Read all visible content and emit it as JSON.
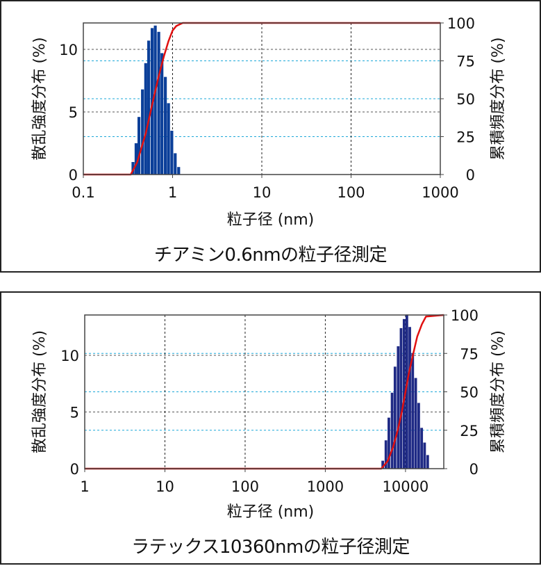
{
  "charts": [
    {
      "caption": "チアミン0.6nmの粒子径測定",
      "xlabel": "粒子径 (nm)",
      "ylabel_left": "散乱強度分布 (%)",
      "ylabel_right": "累積頻度分布 (%)",
      "x_ticks": [
        "0.1",
        "1",
        "10",
        "100",
        "1000"
      ],
      "y_left_ticks": [
        "0",
        "5",
        "10"
      ],
      "y_right_ticks": [
        "0",
        "25",
        "50",
        "75",
        "100"
      ]
    },
    {
      "caption": "ラテックス10360nmの粒子径測定",
      "xlabel": "粒子径 (nm)",
      "ylabel_left": "散乱強度分布 (%)",
      "ylabel_right": "累積頻度分布 (%)",
      "x_ticks": [
        "1",
        "10",
        "100",
        "1000",
        "10000"
      ],
      "y_left_ticks": [
        "0",
        "5",
        "10"
      ],
      "y_right_ticks": [
        "0",
        "25",
        "50",
        "75",
        "100"
      ]
    }
  ],
  "colors": {
    "bars": "#0b3f99",
    "bars_bottom": "#1f2a85",
    "cumulative": "#e01010",
    "grid_dark": "#555555",
    "grid_cyan": "#1aa7d8"
  },
  "chart_data": [
    {
      "type": "bar",
      "title": "チアミン0.6nmの粒子径測定",
      "xlabel": "粒子径 (nm)",
      "ylabel": "散乱強度分布 (%)",
      "y2label": "累積頻度分布 (%)",
      "xscale": "log",
      "xlim": [
        0.1,
        1000
      ],
      "ylim": [
        0,
        12
      ],
      "y2lim": [
        0,
        100
      ],
      "grid": true,
      "series": [
        {
          "name": "散乱強度分布",
          "type": "bar",
          "x": [
            0.36,
            0.39,
            0.42,
            0.46,
            0.5,
            0.54,
            0.59,
            0.64,
            0.7,
            0.76,
            0.83,
            0.9,
            0.98,
            1.07,
            1.17
          ],
          "values": [
            1.0,
            2.5,
            4.6,
            6.8,
            8.9,
            10.7,
            11.7,
            11.9,
            11.4,
            9.7,
            7.8,
            5.7,
            3.5,
            1.7,
            0.6
          ]
        },
        {
          "name": "累積頻度分布",
          "type": "line",
          "x": [
            0.1,
            0.34,
            0.4,
            0.5,
            0.6,
            0.7,
            0.8,
            0.9,
            1.0,
            1.1,
            1.3,
            1000
          ],
          "values": [
            0,
            0,
            8,
            27,
            48,
            65,
            78,
            88,
            95,
            98,
            100,
            100
          ]
        }
      ]
    },
    {
      "type": "bar",
      "title": "ラテックス10360nmの粒子径測定",
      "xlabel": "粒子径 (nm)",
      "ylabel": "散乱強度分布 (%)",
      "y2label": "累積頻度分布 (%)",
      "xscale": "log",
      "xlim": [
        1,
        30000
      ],
      "ylim": [
        0,
        13.5
      ],
      "y2lim": [
        0,
        100
      ],
      "grid": true,
      "series": [
        {
          "name": "散乱強度分布",
          "type": "bar",
          "x": [
            5200,
            5700,
            6200,
            6800,
            7400,
            8100,
            8800,
            9600,
            10400,
            11300,
            12300,
            13400,
            14600,
            15900,
            17300,
            18900
          ],
          "values": [
            0.7,
            2.5,
            4.5,
            6.7,
            9.0,
            10.8,
            12.4,
            13.2,
            13.6,
            12.5,
            10.2,
            8.0,
            5.8,
            3.6,
            2.3,
            1.2
          ]
        },
        {
          "name": "累積頻度分布",
          "type": "line",
          "x": [
            1,
            5000,
            6000,
            7000,
            8000,
            9000,
            10000,
            11000,
            12500,
            14000,
            16000,
            18000,
            30000
          ],
          "values": [
            0,
            0,
            5,
            14,
            25,
            37,
            50,
            62,
            75,
            86,
            94,
            99,
            100
          ]
        }
      ]
    }
  ]
}
